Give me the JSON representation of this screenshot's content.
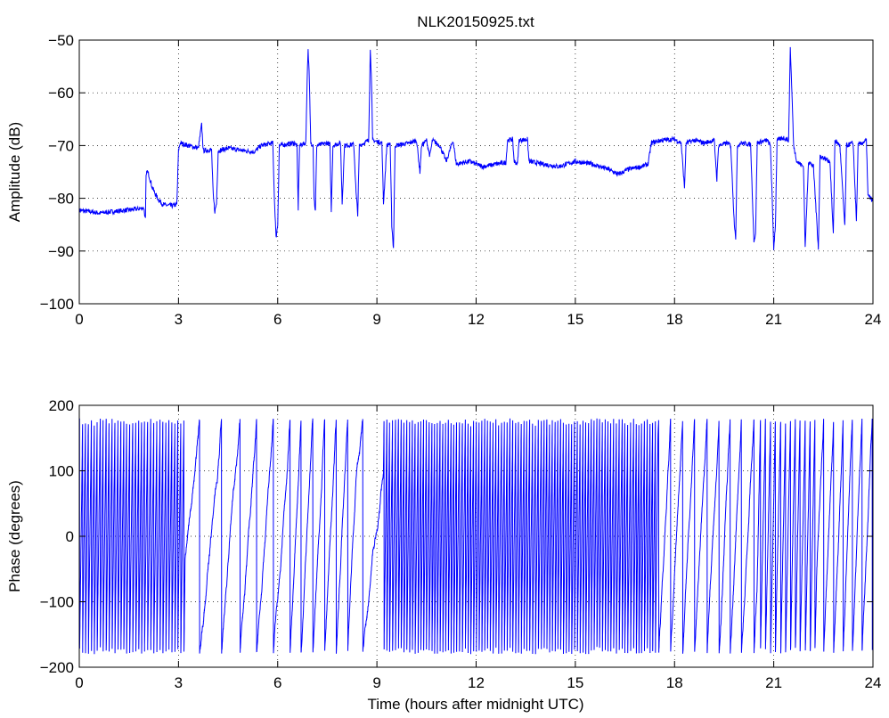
{
  "figure": {
    "title": "NLK20150925.txt"
  },
  "chart_data": [
    {
      "type": "line",
      "title": "NLK20150925.txt",
      "xlabel": "",
      "ylabel": "Amplitude (dB)",
      "xlim": [
        0,
        24
      ],
      "ylim": [
        -100,
        -50
      ],
      "xticks": [
        0,
        3,
        6,
        9,
        12,
        15,
        18,
        21,
        24
      ],
      "yticks": [
        -100,
        -90,
        -80,
        -70,
        -60,
        -50
      ],
      "grid": true,
      "line_color": "#0000ff",
      "series": [
        {
          "points": [
            [
              0.0,
              -82.3
            ],
            [
              0.3,
              -82.5
            ],
            [
              0.6,
              -82.8
            ],
            [
              0.9,
              -82.6
            ],
            [
              1.2,
              -82.4
            ],
            [
              1.5,
              -82.2
            ],
            [
              1.8,
              -82.0
            ],
            [
              1.95,
              -81.8
            ],
            [
              2.0,
              -84.0
            ],
            [
              2.02,
              -76.0
            ],
            [
              2.05,
              -74.8
            ],
            [
              2.1,
              -75.5
            ],
            [
              2.2,
              -77.8
            ],
            [
              2.3,
              -79.2
            ],
            [
              2.4,
              -80.3
            ],
            [
              2.5,
              -81.0
            ],
            [
              2.6,
              -81.3
            ],
            [
              2.8,
              -81.4
            ],
            [
              2.95,
              -81.2
            ],
            [
              3.0,
              -71.0
            ],
            [
              3.05,
              -69.5
            ],
            [
              3.3,
              -70.0
            ],
            [
              3.6,
              -70.5
            ],
            [
              3.7,
              -66.0
            ],
            [
              3.75,
              -71.0
            ],
            [
              4.0,
              -70.8
            ],
            [
              4.05,
              -79.5
            ],
            [
              4.1,
              -82.5
            ],
            [
              4.15,
              -81.0
            ],
            [
              4.2,
              -71.0
            ],
            [
              4.5,
              -70.5
            ],
            [
              5.0,
              -71.0
            ],
            [
              5.3,
              -71.2
            ],
            [
              5.5,
              -70.0
            ],
            [
              5.85,
              -69.5
            ],
            [
              5.9,
              -80.0
            ],
            [
              5.95,
              -87.5
            ],
            [
              6.0,
              -85.0
            ],
            [
              6.05,
              -70.0
            ],
            [
              6.5,
              -69.5
            ],
            [
              6.58,
              -70.0
            ],
            [
              6.62,
              -82.0
            ],
            [
              6.66,
              -70.0
            ],
            [
              6.85,
              -69.5
            ],
            [
              6.9,
              -55.0
            ],
            [
              6.92,
              -52.0
            ],
            [
              6.95,
              -56.0
            ],
            [
              7.0,
              -69.5
            ],
            [
              7.07,
              -69.8
            ],
            [
              7.1,
              -80.0
            ],
            [
              7.14,
              -82.5
            ],
            [
              7.18,
              -70.0
            ],
            [
              7.5,
              -69.5
            ],
            [
              7.58,
              -69.8
            ],
            [
              7.62,
              -82.5
            ],
            [
              7.67,
              -70.0
            ],
            [
              7.9,
              -69.5
            ],
            [
              7.95,
              -81.0
            ],
            [
              8.02,
              -70.0
            ],
            [
              8.3,
              -69.8
            ],
            [
              8.37,
              -79.0
            ],
            [
              8.42,
              -83.0
            ],
            [
              8.47,
              -70.0
            ],
            [
              8.75,
              -69.0
            ],
            [
              8.8,
              -52.0
            ],
            [
              8.83,
              -56.0
            ],
            [
              8.87,
              -69.0
            ],
            [
              9.15,
              -69.5
            ],
            [
              9.2,
              -81.0
            ],
            [
              9.3,
              -70.0
            ],
            [
              9.4,
              -69.5
            ],
            [
              9.45,
              -85.0
            ],
            [
              9.5,
              -89.5
            ],
            [
              9.55,
              -70.0
            ],
            [
              10.0,
              -69.5
            ],
            [
              10.2,
              -69.0
            ],
            [
              10.3,
              -75.0
            ],
            [
              10.35,
              -70.0
            ],
            [
              10.5,
              -69.0
            ],
            [
              10.6,
              -72.0
            ],
            [
              10.68,
              -69.0
            ],
            [
              10.9,
              -70.0
            ],
            [
              11.1,
              -73.0
            ],
            [
              11.3,
              -69.0
            ],
            [
              11.4,
              -73.5
            ],
            [
              11.8,
              -73.0
            ],
            [
              12.2,
              -74.0
            ],
            [
              12.6,
              -73.5
            ],
            [
              12.9,
              -73.2
            ],
            [
              12.95,
              -69.0
            ],
            [
              13.1,
              -68.8
            ],
            [
              13.15,
              -73.0
            ],
            [
              13.25,
              -73.5
            ],
            [
              13.3,
              -69.0
            ],
            [
              13.55,
              -68.8
            ],
            [
              13.6,
              -73.0
            ],
            [
              14.0,
              -73.5
            ],
            [
              14.5,
              -74.0
            ],
            [
              15.0,
              -73.0
            ],
            [
              15.5,
              -73.5
            ],
            [
              16.0,
              -74.5
            ],
            [
              16.3,
              -75.5
            ],
            [
              16.6,
              -74.5
            ],
            [
              17.0,
              -74.0
            ],
            [
              17.2,
              -73.5
            ],
            [
              17.3,
              -69.5
            ],
            [
              17.6,
              -69.0
            ],
            [
              18.0,
              -68.8
            ],
            [
              18.2,
              -69.5
            ],
            [
              18.3,
              -78.0
            ],
            [
              18.35,
              -69.5
            ],
            [
              18.6,
              -69.0
            ],
            [
              18.9,
              -69.5
            ],
            [
              19.2,
              -69.0
            ],
            [
              19.28,
              -76.5
            ],
            [
              19.33,
              -70.0
            ],
            [
              19.6,
              -69.5
            ],
            [
              19.7,
              -70.0
            ],
            [
              19.8,
              -84.0
            ],
            [
              19.85,
              -87.5
            ],
            [
              19.9,
              -70.0
            ],
            [
              20.0,
              -69.5
            ],
            [
              20.3,
              -69.8
            ],
            [
              20.4,
              -88.0
            ],
            [
              20.45,
              -87.0
            ],
            [
              20.5,
              -69.5
            ],
            [
              20.8,
              -69.0
            ],
            [
              20.9,
              -70.0
            ],
            [
              21.0,
              -89.5
            ],
            [
              21.05,
              -85.0
            ],
            [
              21.1,
              -69.0
            ],
            [
              21.3,
              -68.5
            ],
            [
              21.45,
              -69.0
            ],
            [
              21.5,
              -51.5
            ],
            [
              21.55,
              -60.0
            ],
            [
              21.6,
              -70.0
            ],
            [
              21.7,
              -73.0
            ],
            [
              21.9,
              -74.0
            ],
            [
              21.95,
              -89.5
            ],
            [
              22.05,
              -73.0
            ],
            [
              22.2,
              -74.0
            ],
            [
              22.35,
              -89.5
            ],
            [
              22.4,
              -72.0
            ],
            [
              22.7,
              -73.0
            ],
            [
              22.8,
              -87.0
            ],
            [
              22.85,
              -69.0
            ],
            [
              23.0,
              -70.0
            ],
            [
              23.15,
              -85.5
            ],
            [
              23.2,
              -70.0
            ],
            [
              23.4,
              -69.5
            ],
            [
              23.5,
              -84.5
            ],
            [
              23.55,
              -70.0
            ],
            [
              23.8,
              -69.0
            ],
            [
              23.85,
              -79.5
            ],
            [
              24.0,
              -80.5
            ]
          ]
        }
      ]
    },
    {
      "type": "line",
      "title": "",
      "xlabel": "Time (hours after midnight UTC)",
      "ylabel": "Phase (degrees)",
      "xlim": [
        0,
        24
      ],
      "ylim": [
        -200,
        200
      ],
      "xticks": [
        0,
        3,
        6,
        9,
        12,
        15,
        18,
        21,
        24
      ],
      "yticks": [
        -200,
        -100,
        0,
        100,
        200
      ],
      "grid": true,
      "line_color": "#0000ff",
      "segments": [
        {
          "from": 0.0,
          "to": 3.2,
          "period": 0.09,
          "wrap": true
        },
        {
          "from": 3.2,
          "to": 4.2,
          "period": 0.7,
          "wrap": true
        },
        {
          "from": 4.2,
          "to": 5.2,
          "period": 0.55,
          "wrap": true
        },
        {
          "from": 5.2,
          "to": 6.3,
          "period": 0.5,
          "wrap": true
        },
        {
          "from": 6.3,
          "to": 8.4,
          "period": 0.35,
          "wrap": true
        },
        {
          "from": 8.4,
          "to": 9.2,
          "period": 0.8,
          "wrap": true
        },
        {
          "from": 9.2,
          "to": 17.5,
          "period": 0.085,
          "wrap": true
        },
        {
          "from": 17.5,
          "to": 20.5,
          "period": 0.35,
          "wrap": true
        },
        {
          "from": 20.5,
          "to": 22.3,
          "period": 0.15,
          "wrap": true
        },
        {
          "from": 22.3,
          "to": 24.0,
          "period": 0.3,
          "wrap": true
        }
      ]
    }
  ]
}
